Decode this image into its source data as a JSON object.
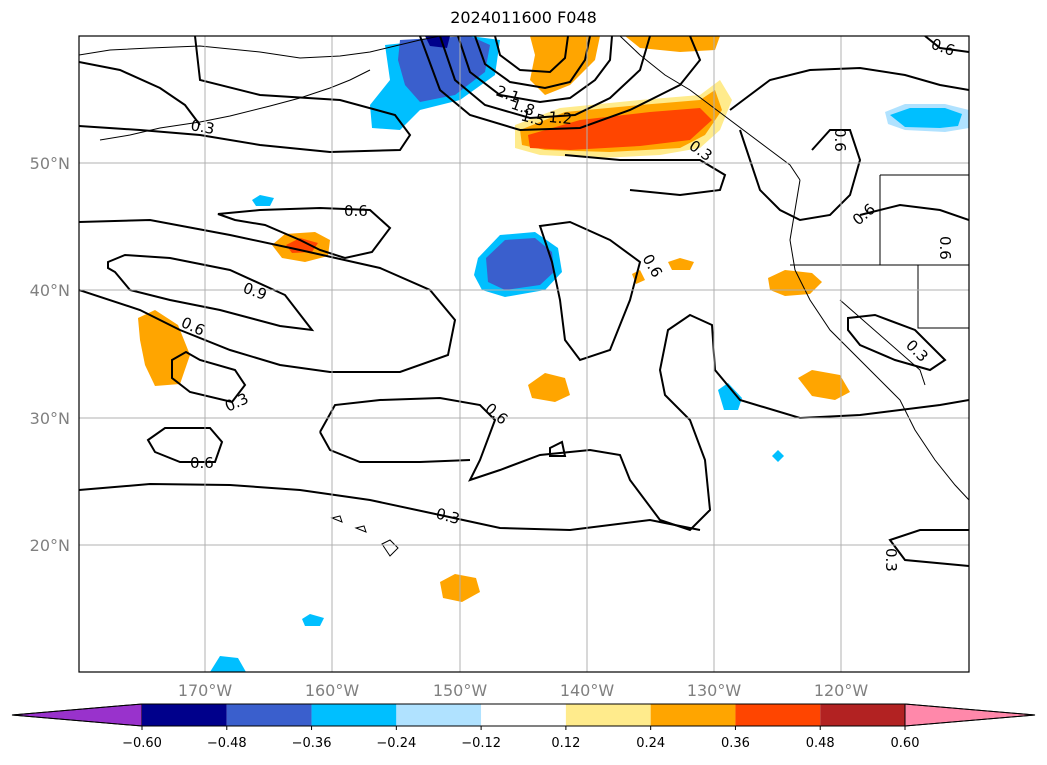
{
  "title": "2024011600 F048",
  "lat_labels": [
    "50°N",
    "40°N",
    "30°N",
    "20°N"
  ],
  "lon_labels": [
    "170°W",
    "160°W",
    "150°W",
    "140°W",
    "130°W",
    "120°W"
  ],
  "colorbar": {
    "ticks": [
      "−0.60",
      "−0.48",
      "−0.36",
      "−0.24",
      "−0.12",
      "0.12",
      "0.24",
      "0.36",
      "0.48",
      "0.60"
    ],
    "colors": [
      "#9932cc",
      "#00008b",
      "#3a5fcd",
      "#00bfff",
      "#b0e2ff",
      "#ffffff",
      "#ffeb8c",
      "#ffa500",
      "#ff4500",
      "#b22222",
      "#ff88aa"
    ]
  },
  "contour_labels": [
    "0.3",
    "0.6",
    "0.9",
    "1.2",
    "1.5",
    "1.8",
    "2.1"
  ]
}
